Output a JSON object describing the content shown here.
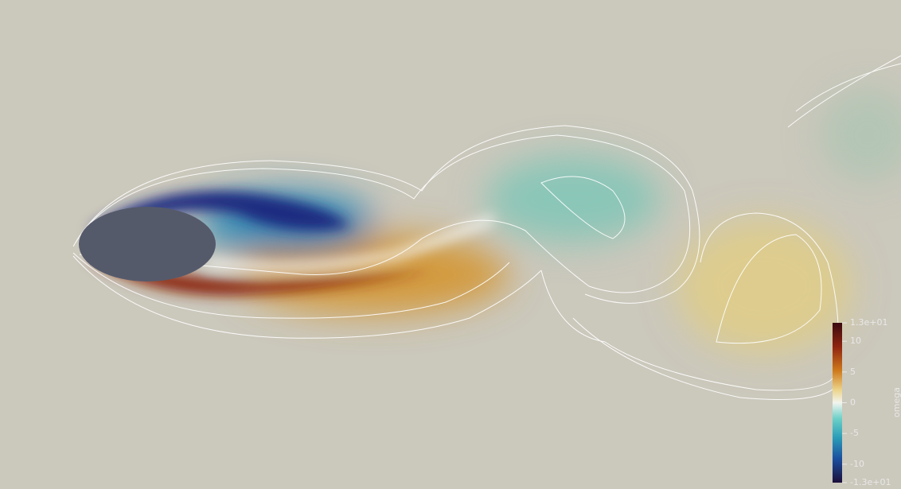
{
  "colorbar": {
    "title": "omega",
    "range": [
      -13,
      13
    ],
    "ticks": [
      {
        "value": 13,
        "label": "1.3e+01"
      },
      10,
      5,
      0,
      -5,
      -10,
      {
        "value": -13,
        "label": "-1.3e+01"
      }
    ]
  }
}
